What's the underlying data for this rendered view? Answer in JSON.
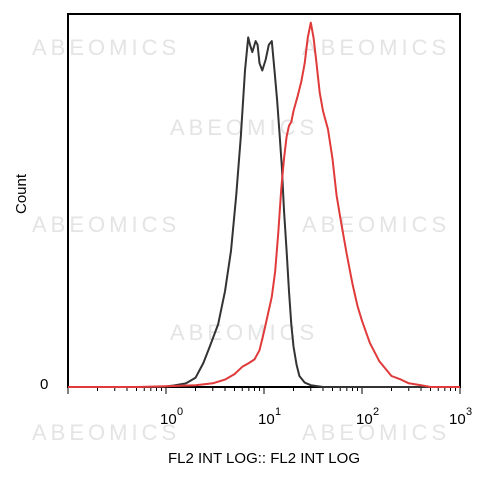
{
  "watermark": "ABEOMICS",
  "chart_data": {
    "type": "line",
    "xlabel": "FL2 INT LOG:: FL2 INT LOG",
    "ylabel": "Count",
    "xscale": "log",
    "xlim": [
      0.1,
      1000
    ],
    "x_ticks": [
      {
        "base": "10",
        "exp": "0"
      },
      {
        "base": "10",
        "exp": "1"
      },
      {
        "base": "10",
        "exp": "2"
      },
      {
        "base": "10",
        "exp": "3"
      }
    ],
    "y_tick_label": "0",
    "ylim": [
      0,
      100
    ],
    "grid": false,
    "legend": "none",
    "series": [
      {
        "color": "#333333",
        "x": [
          0.5,
          0.9,
          1.2,
          1.6,
          2.0,
          2.4,
          2.8,
          3.4,
          4.0,
          4.6,
          5.2,
          5.8,
          6.4,
          6.9,
          7.2,
          7.6,
          8.2,
          8.6,
          9.0,
          9.6,
          10.4,
          11.2,
          12.0,
          12.8,
          13.6,
          14.4,
          15.2,
          16.0,
          17.0,
          18.0,
          19.0,
          20.0,
          21.5,
          23.0,
          26.0,
          30.0,
          40.0,
          100.0,
          1000.0
        ],
        "y": [
          0,
          0,
          0.4,
          1.0,
          2.5,
          6.5,
          11,
          17,
          26,
          37,
          52,
          68,
          86,
          95,
          93,
          91,
          94,
          93,
          88,
          86,
          89,
          93,
          94,
          86,
          78,
          69,
          60,
          48,
          37,
          26,
          17,
          11,
          6,
          3,
          1.2,
          0.5,
          0,
          0,
          0
        ]
      },
      {
        "color": "#e03a3a",
        "x": [
          0.1,
          0.5,
          1.0,
          2.0,
          3.0,
          4.0,
          5.0,
          6.0,
          7.0,
          8.0,
          9.0,
          10.0,
          11.0,
          12.0,
          13.0,
          14.0,
          15.0,
          16.0,
          17.0,
          18.0,
          19.0,
          20.0,
          22.0,
          24.0,
          26.0,
          28.0,
          30.0,
          32.0,
          34.0,
          37.0,
          40.0,
          45.0,
          50.0,
          55.0,
          60.0,
          70.0,
          80.0,
          90.0,
          100.0,
          120.0,
          150.0,
          200.0,
          250.0,
          300.0,
          400.0,
          500.0,
          1000.0
        ],
        "y": [
          0,
          0,
          0.2,
          0.5,
          1.0,
          2.0,
          3.5,
          5.5,
          6.5,
          7.5,
          10.0,
          15.0,
          20.0,
          24.5,
          31.5,
          42,
          54,
          62,
          68,
          71,
          72,
          75,
          79,
          83,
          88,
          95,
          99,
          95,
          89,
          80,
          75,
          70,
          62,
          52,
          46,
          36,
          28,
          22,
          18,
          12,
          7,
          3,
          2,
          1,
          0.5,
          0,
          0
        ]
      }
    ]
  }
}
